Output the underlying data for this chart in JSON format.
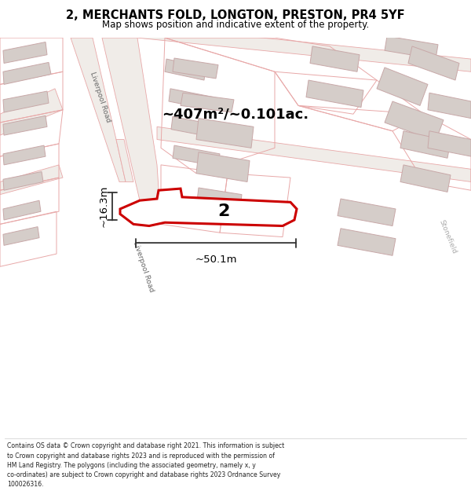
{
  "title": "2, MERCHANTS FOLD, LONGTON, PRESTON, PR4 5YF",
  "subtitle": "Map shows position and indicative extent of the property.",
  "footer_lines": [
    "Contains OS data © Crown copyright and database right 2021. This information is subject",
    "to Crown copyright and database rights 2023 and is reproduced with the permission of",
    "HM Land Registry. The polygons (including the associated geometry, namely x, y",
    "co-ordinates) are subject to Crown copyright and database rights 2023 Ordnance Survey",
    "100026316."
  ],
  "map_bg": "#f5f2ef",
  "road_fill": "#f0ece8",
  "road_edge": "#e8a8a8",
  "building_fill": "#d5cdc9",
  "building_edge": "#c8a8a8",
  "parcel_edge": "#e8a8a8",
  "highlight_color": "#cc0000",
  "highlight_fill": "#ffffff",
  "area_label": "~407m²/~0.101ac.",
  "width_label": "~50.1m",
  "height_label": "~16.3m",
  "property_num": "2",
  "road_label_upper": "Liverpool Road",
  "road_label_lower": "Liverpool Road",
  "road_label_right": "Stonefield",
  "dim_line_color": "#333333",
  "text_color": "#666666"
}
